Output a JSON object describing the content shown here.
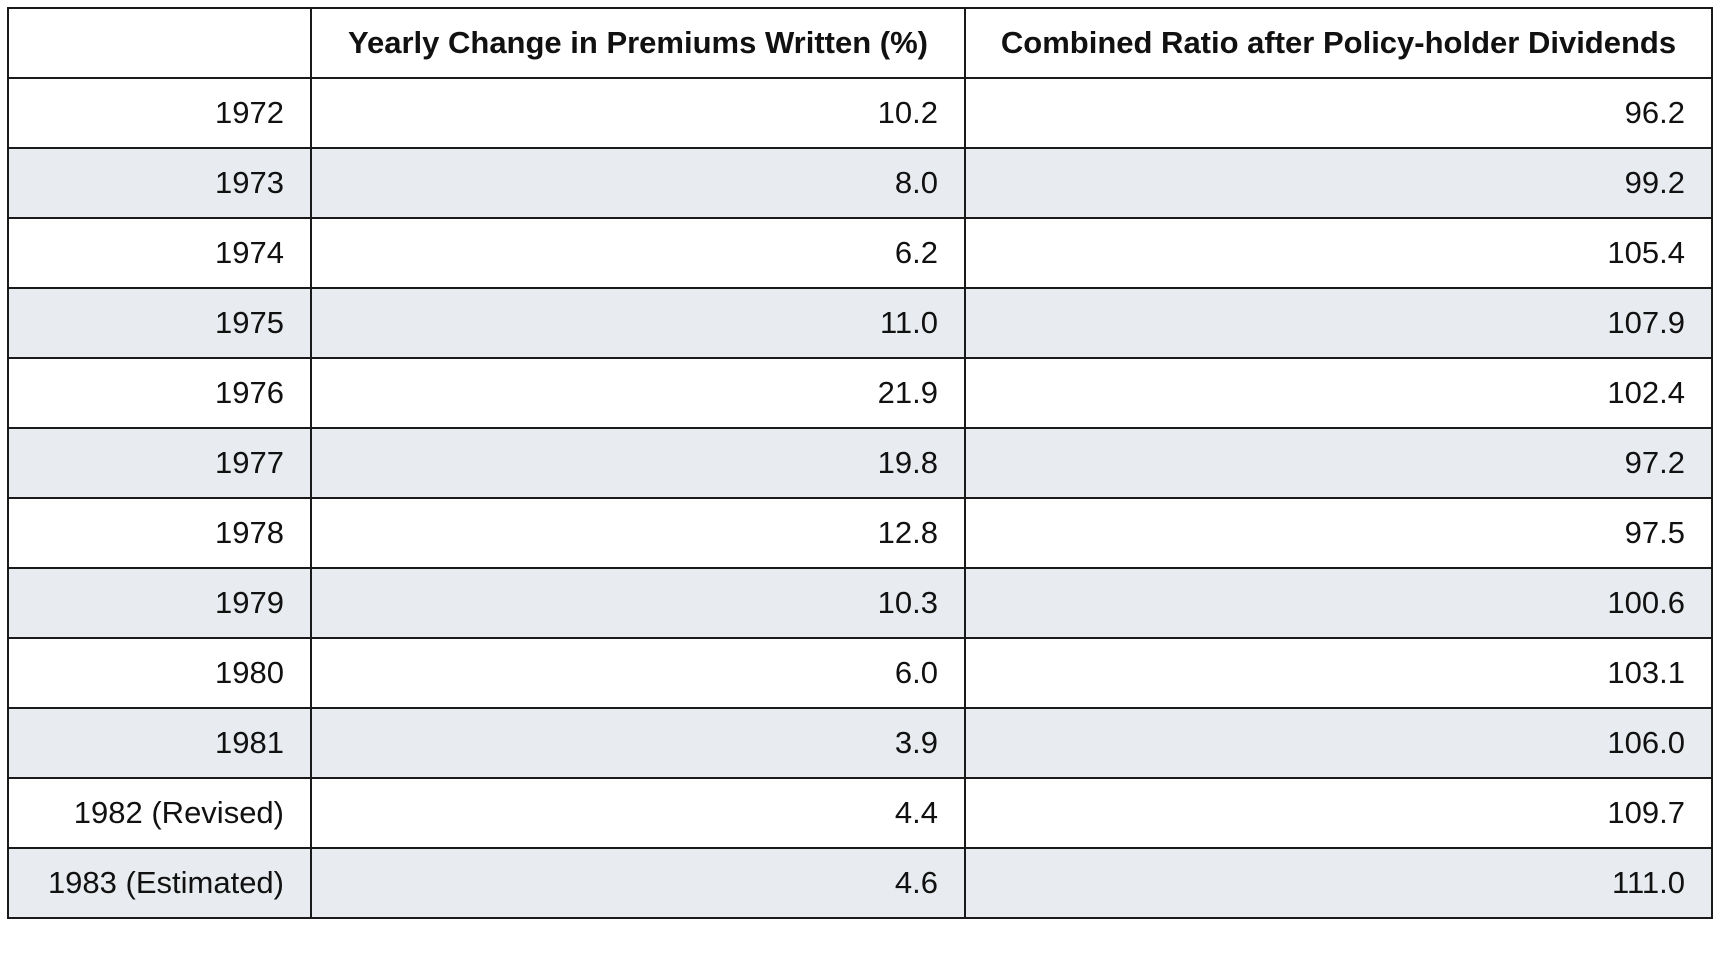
{
  "table": {
    "headers": [
      "",
      "Yearly Change in Premiums Written (%)",
      "Combined Ratio after Policy-holder Dividends"
    ],
    "rows": [
      [
        "1972",
        "10.2",
        "96.2"
      ],
      [
        "1973",
        "8.0",
        "99.2"
      ],
      [
        "1974",
        "6.2",
        "105.4"
      ],
      [
        "1975",
        "11.0",
        "107.9"
      ],
      [
        "1976",
        "21.9",
        "102.4"
      ],
      [
        "1977",
        "19.8",
        "97.2"
      ],
      [
        "1978",
        "12.8",
        "97.5"
      ],
      [
        "1979",
        "10.3",
        "100.6"
      ],
      [
        "1980",
        "6.0",
        "103.1"
      ],
      [
        "1981",
        "3.9",
        "106.0"
      ],
      [
        "1982 (Revised)",
        "4.4",
        "109.7"
      ],
      [
        "1983 (Estimated)",
        "4.6",
        "111.0"
      ]
    ]
  },
  "colors": {
    "row_alt_background": "#e8ebef",
    "row_background": "#ffffff",
    "border": "#1a1a1a"
  }
}
